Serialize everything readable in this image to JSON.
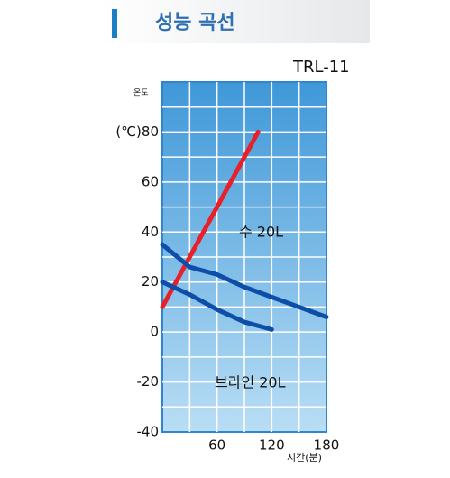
{
  "header": {
    "title": "성능 곡선"
  },
  "chart_data": {
    "type": "line",
    "title": "TRL-11",
    "ylabel": "온도",
    "xlabel": "시간(분)",
    "xlim": [
      0,
      180
    ],
    "xticks": [
      60,
      120,
      180
    ],
    "ylim": [
      -40,
      100
    ],
    "yticks": [
      -40,
      -20,
      0,
      20,
      40,
      60,
      {
        "value": 80,
        "label": "(℃)80"
      }
    ],
    "grid": true,
    "series": [
      {
        "color": "#e8202a",
        "x": [
          0,
          105
        ],
        "values": [
          10,
          80
        ]
      },
      {
        "name": "수 20L",
        "color": "#0d4fa8",
        "x": [
          0,
          30,
          60,
          90,
          120,
          150,
          180
        ],
        "values": [
          35,
          26,
          23,
          18,
          14,
          10,
          6
        ]
      },
      {
        "name": "브라인 20L",
        "color": "#0d4fa8",
        "x": [
          0,
          30,
          60,
          90,
          120
        ],
        "values": [
          20,
          15,
          9,
          4,
          1
        ]
      }
    ]
  }
}
